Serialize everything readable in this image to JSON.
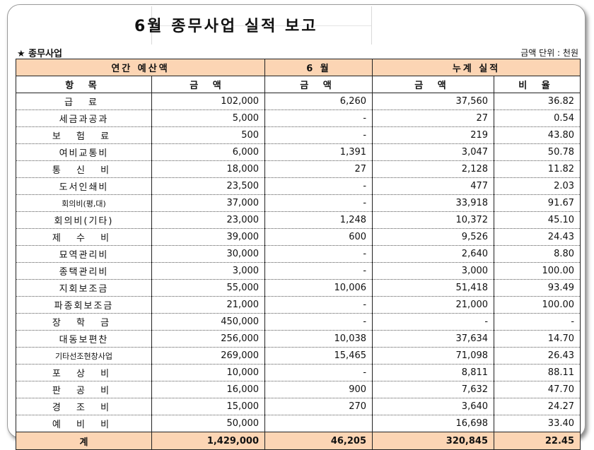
{
  "title": "6월  종무사업 실적 보고",
  "section_label": "★ 종무사업",
  "unit_label": "금액 단위 : 천원",
  "header_groups": [
    "연간 예산액",
    "6 월",
    "누계 실적"
  ],
  "columns": [
    "항 목",
    "금 액",
    "금 액",
    "금 액",
    "비 율"
  ],
  "rows": [
    {
      "item": "급 료",
      "budget": "102,000",
      "month": "6,260",
      "cum": "37,560",
      "ratio": "36.82"
    },
    {
      "item": "세금과공과",
      "budget": "5,000",
      "month": "-",
      "cum": "27",
      "ratio": "0.54"
    },
    {
      "item": "보 험 료",
      "budget": "500",
      "month": "-",
      "cum": "219",
      "ratio": "43.80"
    },
    {
      "item": "여비교통비",
      "budget": "6,000",
      "month": "1,391",
      "cum": "3,047",
      "ratio": "50.78"
    },
    {
      "item": "통 신 비",
      "budget": "18,000",
      "month": "27",
      "cum": "2,128",
      "ratio": "11.82"
    },
    {
      "item": "도서인쇄비",
      "budget": "23,500",
      "month": "-",
      "cum": "477",
      "ratio": "2.03"
    },
    {
      "item": "회의비(평,대)",
      "budget": "37,000",
      "month": "-",
      "cum": "33,918",
      "ratio": "91.67"
    },
    {
      "item": "회의비(기타)",
      "budget": "23,000",
      "month": "1,248",
      "cum": "10,372",
      "ratio": "45.10"
    },
    {
      "item": "제 수 비",
      "budget": "39,000",
      "month": "600",
      "cum": "9,526",
      "ratio": "24.43"
    },
    {
      "item": "묘역관리비",
      "budget": "30,000",
      "month": "-",
      "cum": "2,640",
      "ratio": "8.80"
    },
    {
      "item": "종택관리비",
      "budget": "3,000",
      "month": "-",
      "cum": "3,000",
      "ratio": "100.00"
    },
    {
      "item": "지회보조금",
      "budget": "55,000",
      "month": "10,006",
      "cum": "51,418",
      "ratio": "93.49"
    },
    {
      "item": "파종회보조금",
      "budget": "21,000",
      "month": "-",
      "cum": "21,000",
      "ratio": "100.00"
    },
    {
      "item": "장 학 금",
      "budget": "450,000",
      "month": "-",
      "cum": "-",
      "ratio": "-"
    },
    {
      "item": "대동보편찬",
      "budget": "256,000",
      "month": "10,038",
      "cum": "37,634",
      "ratio": "14.70"
    },
    {
      "item": "기타선조현창사업",
      "budget": "269,000",
      "month": "15,465",
      "cum": "71,098",
      "ratio": "26.43"
    },
    {
      "item": "포 상 비",
      "budget": "10,000",
      "month": "-",
      "cum": "8,811",
      "ratio": "88.11"
    },
    {
      "item": "판 공 비",
      "budget": "16,000",
      "month": "900",
      "cum": "7,632",
      "ratio": "47.70"
    },
    {
      "item": "경 조 비",
      "budget": "15,000",
      "month": "270",
      "cum": "3,640",
      "ratio": "24.27"
    },
    {
      "item": "예 비 비",
      "budget": "50,000",
      "month": "",
      "cum": "16,698",
      "ratio": "33.40"
    }
  ],
  "total": {
    "item": "계",
    "budget": "1,429,000",
    "month": "46,205",
    "cum": "320,845",
    "ratio": "22.45"
  },
  "colors": {
    "header_fill": "#fcd5b4",
    "frame_border": "#9a9a9a"
  }
}
